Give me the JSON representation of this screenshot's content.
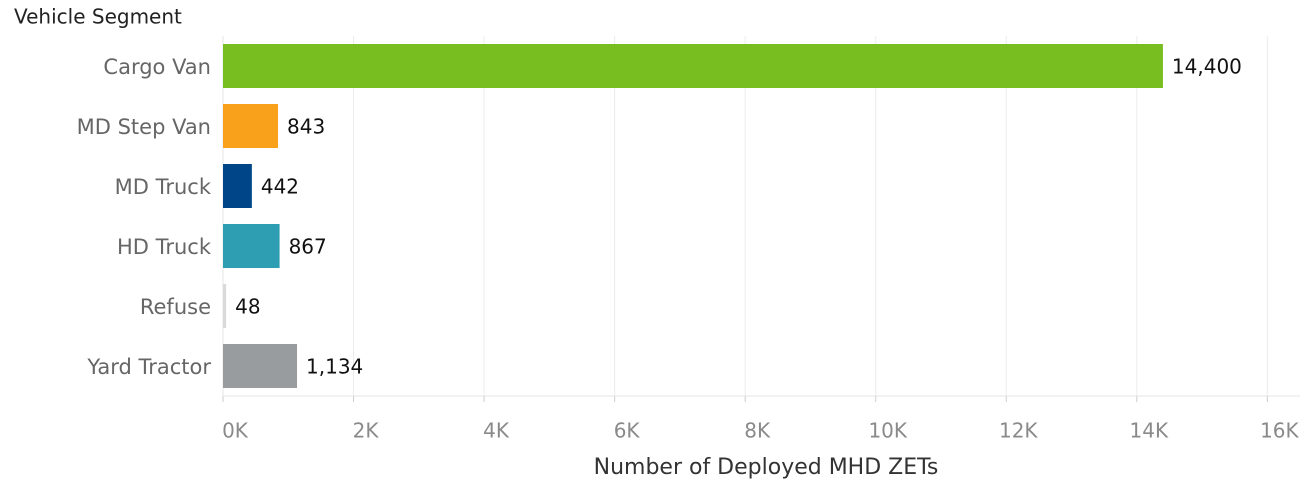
{
  "chart_data": {
    "type": "bar",
    "orientation": "horizontal",
    "y_axis_title": "Vehicle Segment",
    "x_axis_title": "Number of Deployed MHD ZETs",
    "categories": [
      "Cargo Van",
      "MD Step Van",
      "MD Truck",
      "HD Truck",
      "Refuse",
      "Yard Tractor"
    ],
    "values": [
      14400,
      843,
      442,
      867,
      48,
      1134
    ],
    "value_labels": [
      "14,400",
      "843",
      "442",
      "867",
      "48",
      "1,134"
    ],
    "colors": [
      "#78be20",
      "#f9a11b",
      "#004587",
      "#2e9eb3",
      "#d9d9d9",
      "#989c9f"
    ],
    "xlim": [
      0,
      16500
    ],
    "xticks": [
      {
        "value": 0,
        "label": "0K"
      },
      {
        "value": 2000,
        "label": "2K"
      },
      {
        "value": 4000,
        "label": "4K"
      },
      {
        "value": 6000,
        "label": "6K"
      },
      {
        "value": 8000,
        "label": "8K"
      },
      {
        "value": 10000,
        "label": "10K"
      },
      {
        "value": 12000,
        "label": "12K"
      },
      {
        "value": 14000,
        "label": "14K"
      },
      {
        "value": 16000,
        "label": "16K"
      }
    ],
    "grid": true
  }
}
